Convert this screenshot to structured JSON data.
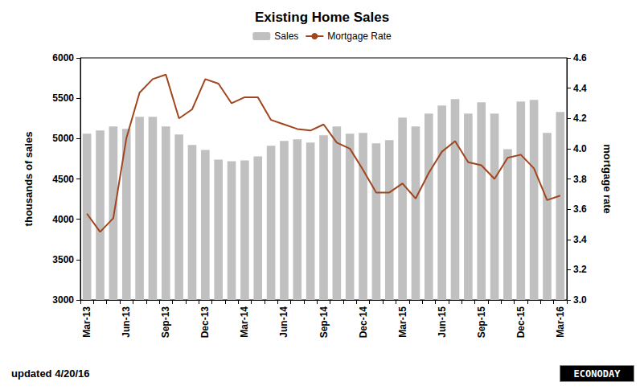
{
  "chart_data": {
    "type": "bar",
    "title": "Existing Home Sales",
    "ylabel": "thousands of sales",
    "y2label": "mortgage rate",
    "annotations": [
      "updated 4/20/16",
      "ECONODAY"
    ],
    "categories": [
      "Mar-13",
      null,
      null,
      "Jun-13",
      null,
      null,
      "Sep-13",
      null,
      null,
      "Dec-13",
      null,
      null,
      "Mar-14",
      null,
      null,
      "Jun-14",
      null,
      null,
      "Sep-14",
      null,
      null,
      "Dec-14",
      null,
      null,
      "Mar-15",
      null,
      null,
      "Jun-15",
      null,
      null,
      "Sep-15",
      null,
      null,
      "Dec-15",
      null,
      null,
      "Mar-16"
    ],
    "series": [
      {
        "name": "Sales",
        "type": "bar",
        "color": "#c0c0c0",
        "values": [
          5060,
          5100,
          5150,
          5120,
          5270,
          5270,
          5150,
          5050,
          4920,
          4860,
          4740,
          4720,
          4730,
          4780,
          4910,
          4970,
          4990,
          4950,
          5040,
          5150,
          5060,
          5070,
          4940,
          4980,
          5260,
          5150,
          5310,
          5410,
          5490,
          5310,
          5450,
          5310,
          4870,
          5460,
          5480,
          5070,
          5330
        ]
      },
      {
        "name": "Mortgage Rate",
        "type": "line",
        "axis": "y2",
        "color": "#a0461e",
        "values": [
          3.57,
          3.45,
          3.54,
          4.07,
          4.37,
          4.46,
          4.49,
          4.2,
          4.26,
          4.46,
          4.43,
          4.3,
          4.34,
          4.34,
          4.19,
          4.16,
          4.13,
          4.12,
          4.16,
          4.04,
          4.0,
          3.86,
          3.71,
          3.71,
          3.77,
          3.67,
          3.84,
          3.98,
          4.05,
          3.91,
          3.89,
          3.8,
          3.94,
          3.96,
          3.87,
          3.66,
          3.69
        ]
      }
    ],
    "ylim": [
      3000,
      6000
    ],
    "yticks": [
      3000,
      3500,
      4000,
      4500,
      5000,
      5500,
      6000
    ],
    "y2lim": [
      3.0,
      4.6
    ],
    "y2ticks": [
      {
        "value": 3.0,
        "label": "3.0"
      },
      3.2,
      3.4,
      3.6,
      3.8,
      {
        "value": 4.0,
        "label": "4.0"
      },
      4.2,
      4.4,
      4.6
    ],
    "grid": false,
    "legend": "top"
  }
}
